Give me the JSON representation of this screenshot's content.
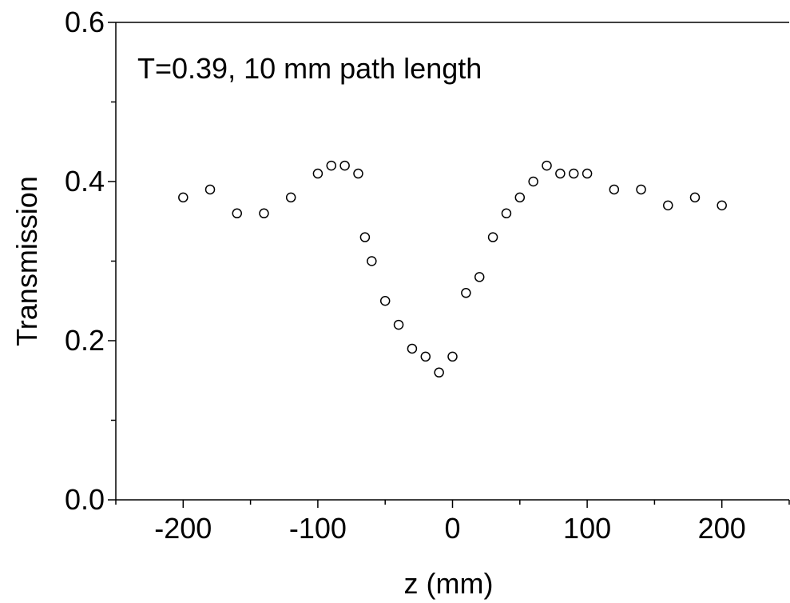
{
  "chart_data": {
    "type": "scatter",
    "title": "",
    "annotation": "T=0.39,  10 mm path length",
    "xlabel": "z (mm)",
    "ylabel": "Transmission",
    "xlim": [
      -250,
      250
    ],
    "ylim": [
      0.0,
      0.6
    ],
    "x_ticks": [
      -200,
      -100,
      0,
      100,
      200
    ],
    "x_tick_labels": [
      "-200",
      "-100",
      "0",
      "100",
      "200"
    ],
    "y_ticks": [
      0.0,
      0.2,
      0.4,
      0.6
    ],
    "y_tick_labels": [
      "0.0",
      "0.2",
      "0.4",
      "0.6"
    ],
    "grid": false,
    "marker": "open-circle",
    "series": [
      {
        "x": [
          -200,
          -180,
          -160,
          -140,
          -120,
          -100,
          -90,
          -80,
          -70,
          -65,
          -60,
          -50,
          -40,
          -30,
          -20,
          -10,
          0,
          10,
          20,
          30,
          40,
          50,
          60,
          70,
          80,
          90,
          100,
          120,
          140,
          160,
          180,
          200
        ],
        "y": [
          0.38,
          0.39,
          0.36,
          0.36,
          0.38,
          0.41,
          0.42,
          0.42,
          0.41,
          0.33,
          0.3,
          0.25,
          0.22,
          0.19,
          0.18,
          0.16,
          0.18,
          0.26,
          0.28,
          0.33,
          0.36,
          0.38,
          0.4,
          0.42,
          0.41,
          0.41,
          0.41,
          0.39,
          0.39,
          0.37,
          0.38,
          0.37
        ]
      }
    ],
    "colors": {
      "axis": "#000000",
      "marker_stroke": "#000000",
      "background": "#ffffff"
    }
  }
}
